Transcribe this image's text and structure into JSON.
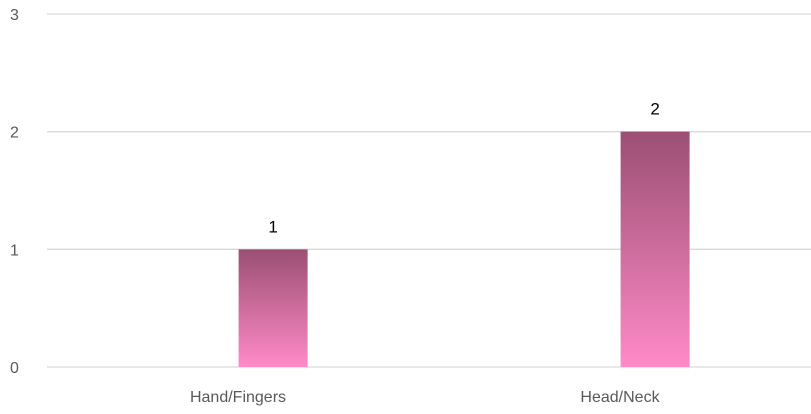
{
  "chart_data": {
    "type": "bar",
    "categories": [
      "Hand/Fingers",
      "Head/Neck"
    ],
    "series": [
      {
        "values": [
          1,
          2
        ]
      }
    ],
    "ylim": [
      0,
      3
    ],
    "yticks": [
      0,
      1,
      2,
      3
    ],
    "data_labels": true,
    "grid": true,
    "legend": "none",
    "colors": {
      "bar_top": "#9b4f73",
      "bar_bottom": "#ff8ac8",
      "gridline": "#d9d9d9",
      "tick_text": "#595959",
      "data_label_text": "#000000"
    }
  }
}
